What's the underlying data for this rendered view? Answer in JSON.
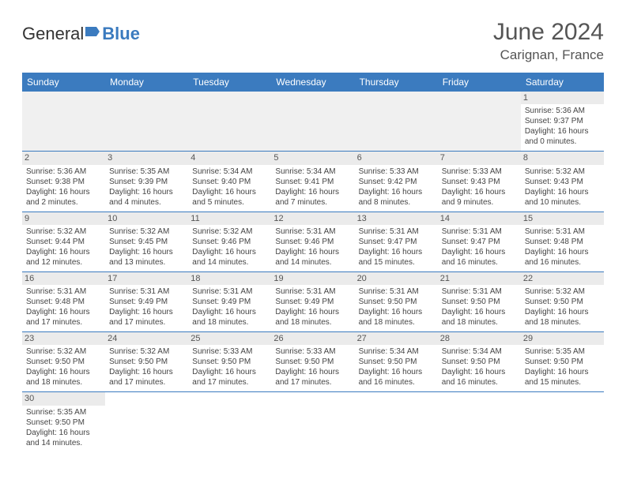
{
  "logo": {
    "text1": "General",
    "text2": "Blue"
  },
  "title": "June 2024",
  "location": "Carignan, France",
  "day_headers": [
    "Sunday",
    "Monday",
    "Tuesday",
    "Wednesday",
    "Thursday",
    "Friday",
    "Saturday"
  ],
  "colors": {
    "header_bg": "#3b7bbf",
    "header_text": "#ffffff",
    "daynum_bg": "#ebebeb",
    "row_divider": "#3b7bbf",
    "logo_accent": "#3b7bbf"
  },
  "weeks": [
    [
      null,
      null,
      null,
      null,
      null,
      null,
      {
        "n": "1",
        "sunrise": "Sunrise: 5:36 AM",
        "sunset": "Sunset: 9:37 PM",
        "daylight": "Daylight: 16 hours and 0 minutes."
      }
    ],
    [
      {
        "n": "2",
        "sunrise": "Sunrise: 5:36 AM",
        "sunset": "Sunset: 9:38 PM",
        "daylight": "Daylight: 16 hours and 2 minutes."
      },
      {
        "n": "3",
        "sunrise": "Sunrise: 5:35 AM",
        "sunset": "Sunset: 9:39 PM",
        "daylight": "Daylight: 16 hours and 4 minutes."
      },
      {
        "n": "4",
        "sunrise": "Sunrise: 5:34 AM",
        "sunset": "Sunset: 9:40 PM",
        "daylight": "Daylight: 16 hours and 5 minutes."
      },
      {
        "n": "5",
        "sunrise": "Sunrise: 5:34 AM",
        "sunset": "Sunset: 9:41 PM",
        "daylight": "Daylight: 16 hours and 7 minutes."
      },
      {
        "n": "6",
        "sunrise": "Sunrise: 5:33 AM",
        "sunset": "Sunset: 9:42 PM",
        "daylight": "Daylight: 16 hours and 8 minutes."
      },
      {
        "n": "7",
        "sunrise": "Sunrise: 5:33 AM",
        "sunset": "Sunset: 9:43 PM",
        "daylight": "Daylight: 16 hours and 9 minutes."
      },
      {
        "n": "8",
        "sunrise": "Sunrise: 5:32 AM",
        "sunset": "Sunset: 9:43 PM",
        "daylight": "Daylight: 16 hours and 10 minutes."
      }
    ],
    [
      {
        "n": "9",
        "sunrise": "Sunrise: 5:32 AM",
        "sunset": "Sunset: 9:44 PM",
        "daylight": "Daylight: 16 hours and 12 minutes."
      },
      {
        "n": "10",
        "sunrise": "Sunrise: 5:32 AM",
        "sunset": "Sunset: 9:45 PM",
        "daylight": "Daylight: 16 hours and 13 minutes."
      },
      {
        "n": "11",
        "sunrise": "Sunrise: 5:32 AM",
        "sunset": "Sunset: 9:46 PM",
        "daylight": "Daylight: 16 hours and 14 minutes."
      },
      {
        "n": "12",
        "sunrise": "Sunrise: 5:31 AM",
        "sunset": "Sunset: 9:46 PM",
        "daylight": "Daylight: 16 hours and 14 minutes."
      },
      {
        "n": "13",
        "sunrise": "Sunrise: 5:31 AM",
        "sunset": "Sunset: 9:47 PM",
        "daylight": "Daylight: 16 hours and 15 minutes."
      },
      {
        "n": "14",
        "sunrise": "Sunrise: 5:31 AM",
        "sunset": "Sunset: 9:47 PM",
        "daylight": "Daylight: 16 hours and 16 minutes."
      },
      {
        "n": "15",
        "sunrise": "Sunrise: 5:31 AM",
        "sunset": "Sunset: 9:48 PM",
        "daylight": "Daylight: 16 hours and 16 minutes."
      }
    ],
    [
      {
        "n": "16",
        "sunrise": "Sunrise: 5:31 AM",
        "sunset": "Sunset: 9:48 PM",
        "daylight": "Daylight: 16 hours and 17 minutes."
      },
      {
        "n": "17",
        "sunrise": "Sunrise: 5:31 AM",
        "sunset": "Sunset: 9:49 PM",
        "daylight": "Daylight: 16 hours and 17 minutes."
      },
      {
        "n": "18",
        "sunrise": "Sunrise: 5:31 AM",
        "sunset": "Sunset: 9:49 PM",
        "daylight": "Daylight: 16 hours and 18 minutes."
      },
      {
        "n": "19",
        "sunrise": "Sunrise: 5:31 AM",
        "sunset": "Sunset: 9:49 PM",
        "daylight": "Daylight: 16 hours and 18 minutes."
      },
      {
        "n": "20",
        "sunrise": "Sunrise: 5:31 AM",
        "sunset": "Sunset: 9:50 PM",
        "daylight": "Daylight: 16 hours and 18 minutes."
      },
      {
        "n": "21",
        "sunrise": "Sunrise: 5:31 AM",
        "sunset": "Sunset: 9:50 PM",
        "daylight": "Daylight: 16 hours and 18 minutes."
      },
      {
        "n": "22",
        "sunrise": "Sunrise: 5:32 AM",
        "sunset": "Sunset: 9:50 PM",
        "daylight": "Daylight: 16 hours and 18 minutes."
      }
    ],
    [
      {
        "n": "23",
        "sunrise": "Sunrise: 5:32 AM",
        "sunset": "Sunset: 9:50 PM",
        "daylight": "Daylight: 16 hours and 18 minutes."
      },
      {
        "n": "24",
        "sunrise": "Sunrise: 5:32 AM",
        "sunset": "Sunset: 9:50 PM",
        "daylight": "Daylight: 16 hours and 17 minutes."
      },
      {
        "n": "25",
        "sunrise": "Sunrise: 5:33 AM",
        "sunset": "Sunset: 9:50 PM",
        "daylight": "Daylight: 16 hours and 17 minutes."
      },
      {
        "n": "26",
        "sunrise": "Sunrise: 5:33 AM",
        "sunset": "Sunset: 9:50 PM",
        "daylight": "Daylight: 16 hours and 17 minutes."
      },
      {
        "n": "27",
        "sunrise": "Sunrise: 5:34 AM",
        "sunset": "Sunset: 9:50 PM",
        "daylight": "Daylight: 16 hours and 16 minutes."
      },
      {
        "n": "28",
        "sunrise": "Sunrise: 5:34 AM",
        "sunset": "Sunset: 9:50 PM",
        "daylight": "Daylight: 16 hours and 16 minutes."
      },
      {
        "n": "29",
        "sunrise": "Sunrise: 5:35 AM",
        "sunset": "Sunset: 9:50 PM",
        "daylight": "Daylight: 16 hours and 15 minutes."
      }
    ],
    [
      {
        "n": "30",
        "sunrise": "Sunrise: 5:35 AM",
        "sunset": "Sunset: 9:50 PM",
        "daylight": "Daylight: 16 hours and 14 minutes."
      },
      null,
      null,
      null,
      null,
      null,
      null
    ]
  ]
}
